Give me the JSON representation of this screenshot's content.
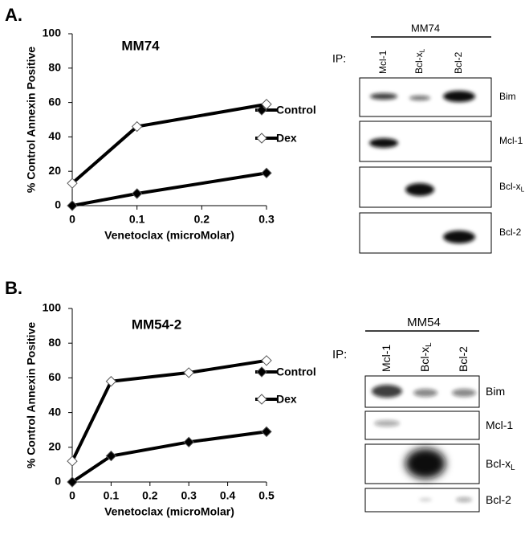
{
  "panel_labels": [
    "A.",
    "B."
  ],
  "chart_data": [
    {
      "type": "line",
      "title": "MM74",
      "xlabel": "Venetoclax (microMolar)",
      "ylabel": "% Control Annexin Positive",
      "x": [
        0,
        0.1,
        0.3
      ],
      "xlim": [
        0,
        0.3
      ],
      "xticks": [
        0,
        0.1,
        0.2,
        0.3
      ],
      "ylim": [
        0,
        100
      ],
      "yticks": [
        0,
        20,
        40,
        60,
        80,
        100
      ],
      "series": [
        {
          "name": "Control",
          "color": "#000000",
          "marker_fill": "#000000",
          "values": [
            0,
            7,
            19
          ]
        },
        {
          "name": "Dex",
          "color": "#000000",
          "marker_fill": "#ffffff",
          "values": [
            13,
            46,
            59
          ]
        }
      ]
    },
    {
      "type": "line",
      "title": "MM54-2",
      "xlabel": "Venetoclax (microMolar)",
      "ylabel": "% Control Annexin Positive",
      "x": [
        0,
        0.1,
        0.3,
        0.5
      ],
      "xlim": [
        0,
        0.5
      ],
      "xticks": [
        0,
        0.1,
        0.2,
        0.3,
        0.4,
        0.5
      ],
      "ylim": [
        0,
        100
      ],
      "yticks": [
        0,
        20,
        40,
        60,
        80,
        100
      ],
      "series": [
        {
          "name": "Control",
          "color": "#000000",
          "marker_fill": "#000000",
          "values": [
            0,
            15,
            23,
            29
          ]
        },
        {
          "name": "Dex",
          "color": "#000000",
          "marker_fill": "#ffffff",
          "values": [
            12,
            58,
            63,
            70
          ]
        }
      ]
    }
  ],
  "blots": [
    {
      "title": "MM74",
      "ip": "IP:",
      "lanes": [
        {
          "text": "Mcl-1",
          "sub": ""
        },
        {
          "text": "Bcl-x",
          "sub": "L"
        },
        {
          "text": "Bcl-2",
          "sub": ""
        }
      ],
      "rows": [
        {
          "text": "Bim",
          "sub": ""
        },
        {
          "text": "Mcl-1",
          "sub": ""
        },
        {
          "text": "Bcl-x",
          "sub": "L"
        },
        {
          "text": "Bcl-2",
          "sub": ""
        }
      ]
    },
    {
      "title": "MM54",
      "ip": "IP:",
      "lanes": [
        {
          "text": "Mcl-1",
          "sub": ""
        },
        {
          "text": "Bcl-x",
          "sub": "L"
        },
        {
          "text": "Bcl-2",
          "sub": ""
        }
      ],
      "rows": [
        {
          "text": "Bim",
          "sub": ""
        },
        {
          "text": "Mcl-1",
          "sub": ""
        },
        {
          "text": "Bcl-x",
          "sub": "L"
        },
        {
          "text": "Bcl-2",
          "sub": ""
        }
      ]
    }
  ]
}
